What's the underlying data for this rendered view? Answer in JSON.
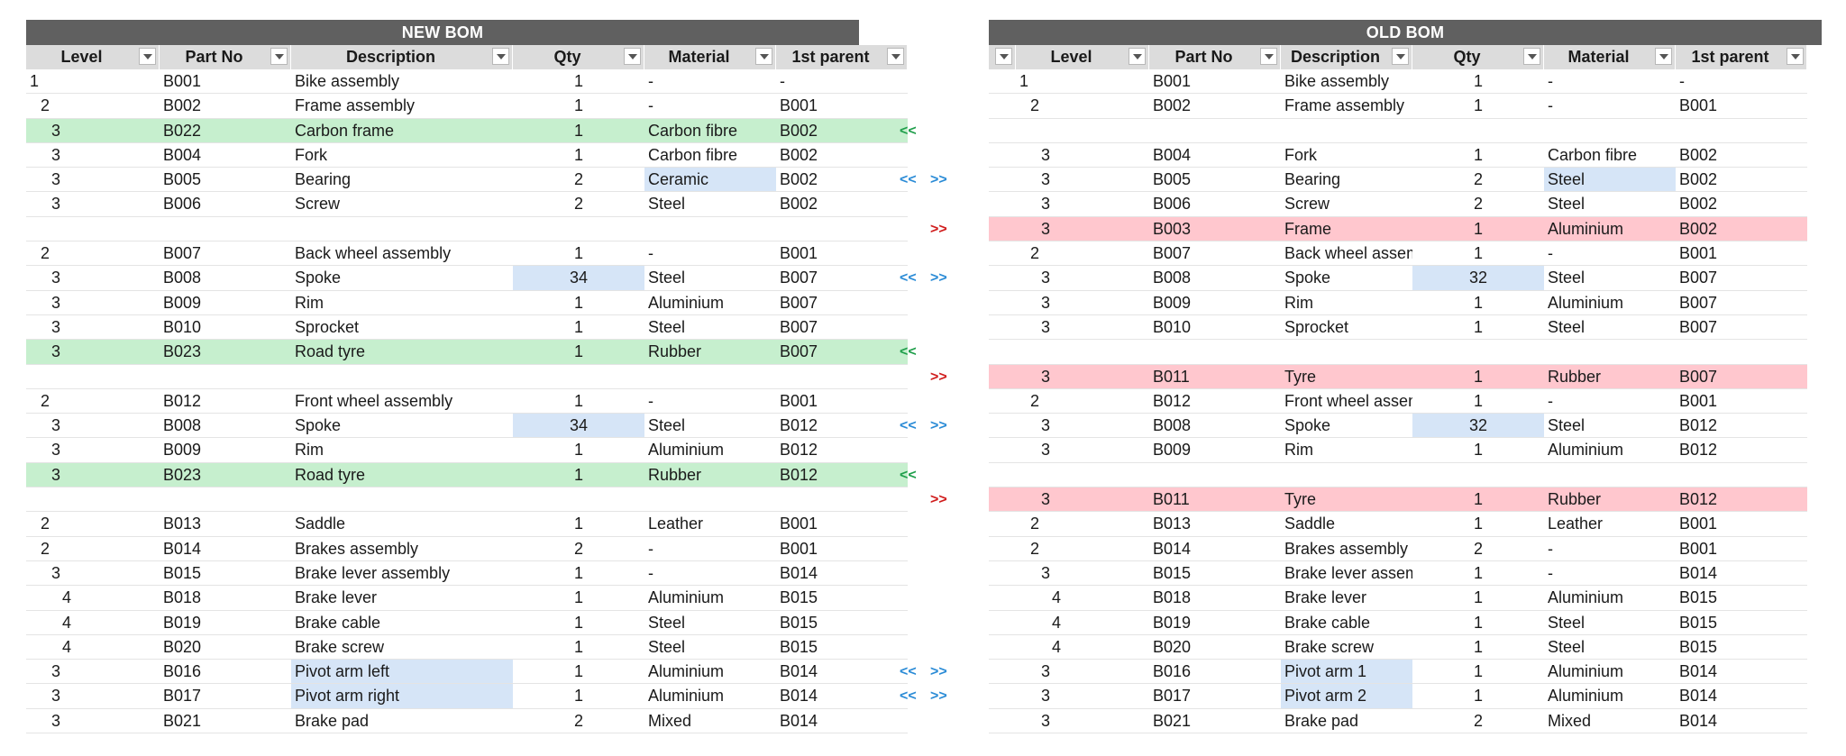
{
  "new_bom": {
    "title": "NEW BOM",
    "headers": [
      "Level",
      "Part No",
      "Description",
      "Qty",
      "Material",
      "1st parent"
    ],
    "rows": [
      {
        "level": "1",
        "part": "B001",
        "desc": "Bike assembly",
        "qty": "1",
        "material": "-",
        "parent": "-",
        "indent": 0,
        "hl": ""
      },
      {
        "level": "2",
        "part": "B002",
        "desc": "Frame assembly",
        "qty": "1",
        "material": "-",
        "parent": "B001",
        "indent": 1,
        "hl": ""
      },
      {
        "level": "3",
        "part": "B022",
        "desc": "Carbon frame",
        "qty": "1",
        "material": "Carbon fibre",
        "parent": "B002",
        "indent": 2,
        "hl": "green"
      },
      {
        "level": "3",
        "part": "B004",
        "desc": "Fork",
        "qty": "1",
        "material": "Carbon fibre",
        "parent": "B002",
        "indent": 2,
        "hl": ""
      },
      {
        "level": "3",
        "part": "B005",
        "desc": "Bearing",
        "qty": "2",
        "material": "Ceramic",
        "parent": "B002",
        "indent": 2,
        "hl": "",
        "blue": "material"
      },
      {
        "level": "3",
        "part": "B006",
        "desc": "Screw",
        "qty": "2",
        "material": "Steel",
        "parent": "B002",
        "indent": 2,
        "hl": ""
      },
      {
        "blank": true
      },
      {
        "level": "2",
        "part": "B007",
        "desc": "Back wheel assembly",
        "qty": "1",
        "material": "-",
        "parent": "B001",
        "indent": 1,
        "hl": ""
      },
      {
        "level": "3",
        "part": "B008",
        "desc": "Spoke",
        "qty": "34",
        "material": "Steel",
        "parent": "B007",
        "indent": 2,
        "hl": "",
        "blue": "qty"
      },
      {
        "level": "3",
        "part": "B009",
        "desc": "Rim",
        "qty": "1",
        "material": "Aluminium",
        "parent": "B007",
        "indent": 2,
        "hl": ""
      },
      {
        "level": "3",
        "part": "B010",
        "desc": "Sprocket",
        "qty": "1",
        "material": "Steel",
        "parent": "B007",
        "indent": 2,
        "hl": ""
      },
      {
        "level": "3",
        "part": "B023",
        "desc": "Road tyre",
        "qty": "1",
        "material": "Rubber",
        "parent": "B007",
        "indent": 2,
        "hl": "green"
      },
      {
        "blank": true
      },
      {
        "level": "2",
        "part": "B012",
        "desc": "Front wheel assembly",
        "qty": "1",
        "material": "-",
        "parent": "B001",
        "indent": 1,
        "hl": ""
      },
      {
        "level": "3",
        "part": "B008",
        "desc": "Spoke",
        "qty": "34",
        "material": "Steel",
        "parent": "B012",
        "indent": 2,
        "hl": "",
        "blue": "qty"
      },
      {
        "level": "3",
        "part": "B009",
        "desc": "Rim",
        "qty": "1",
        "material": "Aluminium",
        "parent": "B012",
        "indent": 2,
        "hl": ""
      },
      {
        "level": "3",
        "part": "B023",
        "desc": "Road tyre",
        "qty": "1",
        "material": "Rubber",
        "parent": "B012",
        "indent": 2,
        "hl": "green"
      },
      {
        "blank": true
      },
      {
        "level": "2",
        "part": "B013",
        "desc": "Saddle",
        "qty": "1",
        "material": "Leather",
        "parent": "B001",
        "indent": 1,
        "hl": ""
      },
      {
        "level": "2",
        "part": "B014",
        "desc": "Brakes assembly",
        "qty": "2",
        "material": "-",
        "parent": "B001",
        "indent": 1,
        "hl": ""
      },
      {
        "level": "3",
        "part": "B015",
        "desc": "Brake lever assembly",
        "qty": "1",
        "material": "-",
        "parent": "B014",
        "indent": 2,
        "hl": ""
      },
      {
        "level": "4",
        "part": "B018",
        "desc": "Brake lever",
        "qty": "1",
        "material": "Aluminium",
        "parent": "B015",
        "indent": 3,
        "hl": ""
      },
      {
        "level": "4",
        "part": "B019",
        "desc": "Brake cable",
        "qty": "1",
        "material": "Steel",
        "parent": "B015",
        "indent": 3,
        "hl": ""
      },
      {
        "level": "4",
        "part": "B020",
        "desc": "Brake screw",
        "qty": "1",
        "material": "Steel",
        "parent": "B015",
        "indent": 3,
        "hl": ""
      },
      {
        "level": "3",
        "part": "B016",
        "desc": "Pivot arm left",
        "qty": "1",
        "material": "Aluminium",
        "parent": "B014",
        "indent": 2,
        "hl": "",
        "blue": "desc"
      },
      {
        "level": "3",
        "part": "B017",
        "desc": "Pivot arm right",
        "qty": "1",
        "material": "Aluminium",
        "parent": "B014",
        "indent": 2,
        "hl": "",
        "blue": "desc"
      },
      {
        "level": "3",
        "part": "B021",
        "desc": "Brake pad",
        "qty": "2",
        "material": "Mixed",
        "parent": "B014",
        "indent": 2,
        "hl": ""
      }
    ]
  },
  "old_bom": {
    "title": "OLD BOM",
    "headers": [
      "",
      "Level",
      "Part No",
      "Description",
      "Qty",
      "Material",
      "1st parent"
    ],
    "rows": [
      {
        "level": "1",
        "part": "B001",
        "desc": "Bike assembly",
        "qty": "1",
        "material": "-",
        "parent": "-",
        "indent": 0,
        "hl": ""
      },
      {
        "level": "2",
        "part": "B002",
        "desc": "Frame assembly",
        "qty": "1",
        "material": "-",
        "parent": "B001",
        "indent": 1,
        "hl": ""
      },
      {
        "blank": true
      },
      {
        "level": "3",
        "part": "B004",
        "desc": "Fork",
        "qty": "1",
        "material": "Carbon fibre",
        "parent": "B002",
        "indent": 2,
        "hl": ""
      },
      {
        "level": "3",
        "part": "B005",
        "desc": "Bearing",
        "qty": "2",
        "material": "Steel",
        "parent": "B002",
        "indent": 2,
        "hl": "",
        "blue": "material"
      },
      {
        "level": "3",
        "part": "B006",
        "desc": "Screw",
        "qty": "2",
        "material": "Steel",
        "parent": "B002",
        "indent": 2,
        "hl": ""
      },
      {
        "level": "3",
        "part": "B003",
        "desc": "Frame",
        "qty": "1",
        "material": "Aluminium",
        "parent": "B002",
        "indent": 2,
        "hl": "red"
      },
      {
        "level": "2",
        "part": "B007",
        "desc": "Back wheel assembly",
        "qty": "1",
        "material": "-",
        "parent": "B001",
        "indent": 1,
        "hl": ""
      },
      {
        "level": "3",
        "part": "B008",
        "desc": "Spoke",
        "qty": "32",
        "material": "Steel",
        "parent": "B007",
        "indent": 2,
        "hl": "",
        "blue": "qty"
      },
      {
        "level": "3",
        "part": "B009",
        "desc": "Rim",
        "qty": "1",
        "material": "Aluminium",
        "parent": "B007",
        "indent": 2,
        "hl": ""
      },
      {
        "level": "3",
        "part": "B010",
        "desc": "Sprocket",
        "qty": "1",
        "material": "Steel",
        "parent": "B007",
        "indent": 2,
        "hl": ""
      },
      {
        "blank": true
      },
      {
        "level": "3",
        "part": "B011",
        "desc": "Tyre",
        "qty": "1",
        "material": "Rubber",
        "parent": "B007",
        "indent": 2,
        "hl": "red"
      },
      {
        "level": "2",
        "part": "B012",
        "desc": "Front wheel assembly",
        "qty": "1",
        "material": "-",
        "parent": "B001",
        "indent": 1,
        "hl": ""
      },
      {
        "level": "3",
        "part": "B008",
        "desc": "Spoke",
        "qty": "32",
        "material": "Steel",
        "parent": "B012",
        "indent": 2,
        "hl": "",
        "blue": "qty"
      },
      {
        "level": "3",
        "part": "B009",
        "desc": "Rim",
        "qty": "1",
        "material": "Aluminium",
        "parent": "B012",
        "indent": 2,
        "hl": ""
      },
      {
        "blank": true
      },
      {
        "level": "3",
        "part": "B011",
        "desc": "Tyre",
        "qty": "1",
        "material": "Rubber",
        "parent": "B012",
        "indent": 2,
        "hl": "red"
      },
      {
        "level": "2",
        "part": "B013",
        "desc": "Saddle",
        "qty": "1",
        "material": "Leather",
        "parent": "B001",
        "indent": 1,
        "hl": ""
      },
      {
        "level": "2",
        "part": "B014",
        "desc": "Brakes assembly",
        "qty": "2",
        "material": "-",
        "parent": "B001",
        "indent": 1,
        "hl": ""
      },
      {
        "level": "3",
        "part": "B015",
        "desc": "Brake lever assembly",
        "qty": "1",
        "material": "-",
        "parent": "B014",
        "indent": 2,
        "hl": ""
      },
      {
        "level": "4",
        "part": "B018",
        "desc": "Brake lever",
        "qty": "1",
        "material": "Aluminium",
        "parent": "B015",
        "indent": 3,
        "hl": ""
      },
      {
        "level": "4",
        "part": "B019",
        "desc": "Brake cable",
        "qty": "1",
        "material": "Steel",
        "parent": "B015",
        "indent": 3,
        "hl": ""
      },
      {
        "level": "4",
        "part": "B020",
        "desc": "Brake screw",
        "qty": "1",
        "material": "Steel",
        "parent": "B015",
        "indent": 3,
        "hl": ""
      },
      {
        "level": "3",
        "part": "B016",
        "desc": "Pivot arm 1",
        "qty": "1",
        "material": "Aluminium",
        "parent": "B014",
        "indent": 2,
        "hl": "",
        "blue": "desc"
      },
      {
        "level": "3",
        "part": "B017",
        "desc": "Pivot arm 2",
        "qty": "1",
        "material": "Aluminium",
        "parent": "B014",
        "indent": 2,
        "hl": "",
        "blue": "desc"
      },
      {
        "level": "3",
        "part": "B021",
        "desc": "Brake pad",
        "qty": "2",
        "material": "Mixed",
        "parent": "B014",
        "indent": 2,
        "hl": ""
      }
    ]
  },
  "markers": [
    {
      "left": "",
      "right": ""
    },
    {
      "left": "",
      "right": ""
    },
    {
      "left": "<<",
      "right": "",
      "left_color": "green"
    },
    {
      "left": "",
      "right": ""
    },
    {
      "left": "<<",
      "right": ">>",
      "left_color": "blue",
      "right_color": "blue"
    },
    {
      "left": "",
      "right": ""
    },
    {
      "left": "",
      "right": ">>",
      "right_color": "red"
    },
    {
      "left": "",
      "right": ""
    },
    {
      "left": "<<",
      "right": ">>",
      "left_color": "blue",
      "right_color": "blue"
    },
    {
      "left": "",
      "right": ""
    },
    {
      "left": "",
      "right": ""
    },
    {
      "left": "<<",
      "right": "",
      "left_color": "green"
    },
    {
      "left": "",
      "right": ">>",
      "right_color": "red"
    },
    {
      "left": "",
      "right": ""
    },
    {
      "left": "<<",
      "right": ">>",
      "left_color": "blue",
      "right_color": "blue"
    },
    {
      "left": "",
      "right": ""
    },
    {
      "left": "<<",
      "right": "",
      "left_color": "green"
    },
    {
      "left": "",
      "right": ">>",
      "right_color": "red"
    },
    {
      "left": "",
      "right": ""
    },
    {
      "left": "",
      "right": ""
    },
    {
      "left": "",
      "right": ""
    },
    {
      "left": "",
      "right": ""
    },
    {
      "left": "",
      "right": ""
    },
    {
      "left": "",
      "right": ""
    },
    {
      "left": "<<",
      "right": ">>",
      "left_color": "blue",
      "right_color": "blue"
    },
    {
      "left": "<<",
      "right": ">>",
      "left_color": "blue",
      "right_color": "blue"
    },
    {
      "left": "",
      "right": ""
    }
  ],
  "colors": {
    "title_bg": "#606060",
    "header_bg": "#dcdcdc",
    "added_row": "#c6efce",
    "removed_row": "#ffc7ce",
    "changed_cell": "#d6e5f7",
    "marker_green": "#1e9e4a",
    "marker_blue": "#2a8bd6",
    "marker_red": "#d01c1c"
  }
}
